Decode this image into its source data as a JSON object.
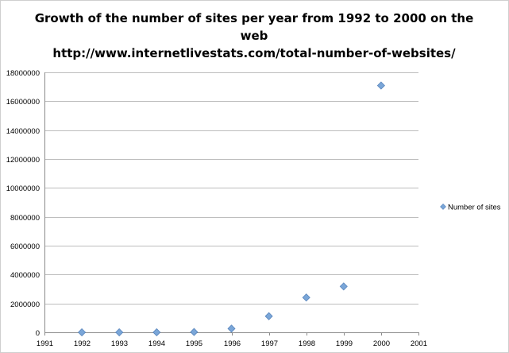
{
  "chart_data": {
    "type": "scatter",
    "title_lines": [
      "Growth of the number of sites per year from 1992 to 2000 on the",
      "web",
      "http://www.internetlivestats.com/total-number-of-websites/"
    ],
    "xlabel": "",
    "ylabel": "",
    "xlim": [
      1991,
      2001
    ],
    "ylim": [
      0,
      18000000
    ],
    "x_ticks": [
      "1991",
      "1992",
      "1993",
      "1994",
      "1995",
      "1996",
      "1997",
      "1998",
      "1999",
      "2000",
      "2001"
    ],
    "y_ticks": [
      "0",
      "2000000",
      "4000000",
      "6000000",
      "8000000",
      "10000000",
      "12000000",
      "14000000",
      "16000000",
      "18000000"
    ],
    "grid": "horizontal",
    "legend_position": "right",
    "series": [
      {
        "name": "Number of sites",
        "color": "#7aa6d8",
        "marker": "diamond",
        "x": [
          1992,
          1993,
          1994,
          1995,
          1996,
          1997,
          1998,
          1999,
          2000
        ],
        "y": [
          10,
          130,
          2738,
          23500,
          257601,
          1117255,
          2410067,
          3177453,
          17087182
        ]
      }
    ]
  }
}
